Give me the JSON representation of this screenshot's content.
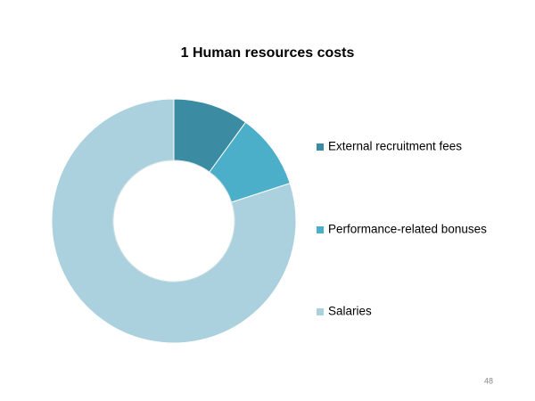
{
  "chart_data": {
    "type": "donut",
    "title": "1  Human resources costs",
    "categories": [
      "External recruitment fees",
      "Performance-related bonuses",
      "Salaries"
    ],
    "values": [
      10,
      10,
      80
    ],
    "colors": [
      "#3b8ba3",
      "#4bafca",
      "#abd0de"
    ],
    "legend": "right"
  },
  "page_number": 48
}
